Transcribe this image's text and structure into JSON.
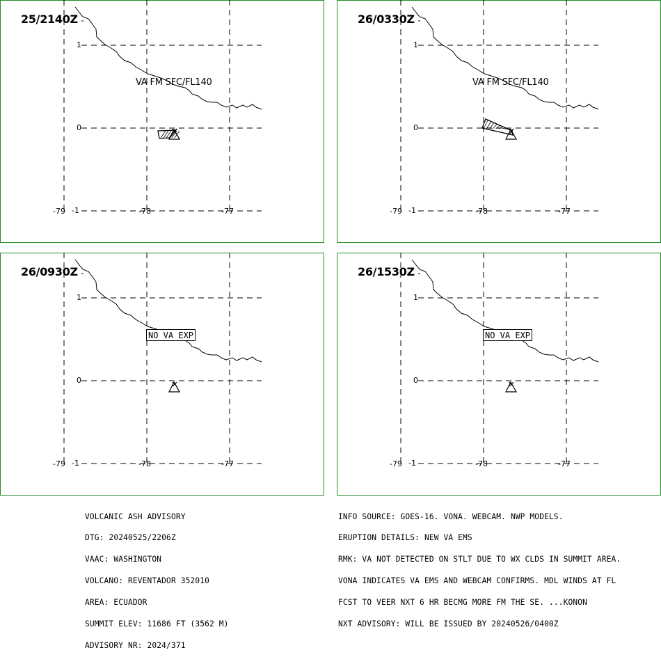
{
  "colors": {
    "frame": "#228B22",
    "ink": "#000000",
    "background": "#ffffff"
  },
  "panels": [
    {
      "time": "25/2140Z",
      "label": "VA FM SFC/FL140",
      "cloud": "small",
      "status": ""
    },
    {
      "time": "26/0330Z",
      "label": "VA FM SFC/FL140",
      "cloud": "large",
      "status": ""
    },
    {
      "time": "26/0930Z",
      "label": "",
      "cloud": "none",
      "status": "NO VA EXP"
    },
    {
      "time": "26/1530Z",
      "label": "",
      "cloud": "none",
      "status": "NO VA EXP"
    }
  ],
  "axes": {
    "lon_ticks": [
      "-79",
      "-78",
      "-77"
    ],
    "lat_ticks": [
      "1",
      "0",
      "-1"
    ]
  },
  "volcano_symbol": "triangle-volcano-icon",
  "advisory_left": [
    "VOLCANIC ASH ADVISORY",
    "DTG: 20240525/2206Z",
    "VAAC: WASHINGTON",
    "VOLCANO: REVENTADOR 352010",
    "AREA: ECUADOR",
    "SUMMIT ELEV: 11686 FT (3562 M)",
    "ADVISORY NR: 2024/371"
  ],
  "advisory_right": [
    "INFO SOURCE: GOES-16. VONA. WEBCAM. NWP MODELS.",
    "ERUPTION DETAILS: NEW VA EMS",
    "RMK: VA NOT DETECTED ON STLT DUE TO WX CLDS IN SUMMIT AREA.",
    "VONA INDICATES VA EMS AND WEBCAM CONFIRMS. MDL WINDS AT FL",
    "FCST TO VEER NXT 6 HR BECMG MORE FM THE SE. ...KONON",
    "NXT ADVISORY: WILL BE ISSUED BY 20240526/0400Z"
  ]
}
